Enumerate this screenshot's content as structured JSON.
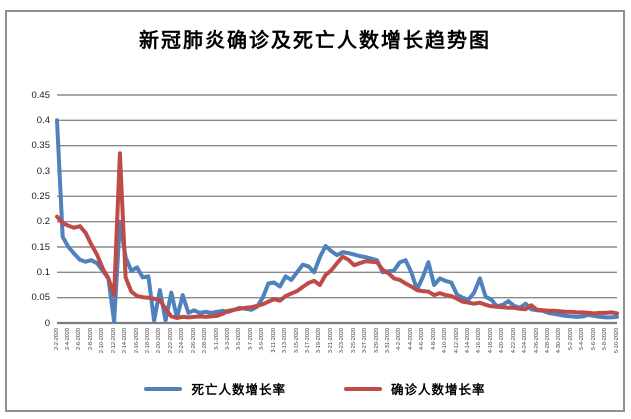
{
  "chart": {
    "title": "新冠肺炎确诊及死亡人数增长趋势图"
  },
  "legend": {
    "items": [
      {
        "label": "死亡人数增长率",
        "color": "#4F81BD"
      },
      {
        "label": "确诊人数增长率",
        "color": "#BE4B48"
      }
    ]
  },
  "colors": {
    "death_series": "#4F81BD",
    "confirmed_series": "#BE4B48",
    "gridline": "#8a8a8a",
    "axis": "#7d7d7d",
    "frame_border": "#8f8f8f"
  },
  "chart_data": {
    "type": "line",
    "title": "新冠肺炎确诊及死亡人数增长趋势图",
    "xlabel": "",
    "ylabel": "",
    "ylim": [
      0,
      0.45
    ],
    "grid": true,
    "legend_position": "bottom",
    "y_tick_labels": [
      "0",
      "0.05",
      "0.1",
      "0.15",
      "0.2",
      "0.25",
      "0.3",
      "0.35",
      "0.4",
      "0.45"
    ],
    "x_tick_labels": [
      "2-2-2020",
      "2-4-2020",
      "2-6-2020",
      "2-8-2020",
      "2-10-2020",
      "2-12-2020",
      "2-14-2020",
      "2-16-2020",
      "2-18-2020",
      "2-20-2020",
      "2-22-2020",
      "2-24-2020",
      "2-26-2020",
      "2-28-2020",
      "3-1-2020",
      "3-3-2020",
      "3-5-2020",
      "3-7-2020",
      "3-9-2020",
      "3-11-2020",
      "3-13-2020",
      "3-15-2020",
      "3-17-2020",
      "3-19-2020",
      "3-21-2020",
      "3-23-2020",
      "3-25-2020",
      "3-27-2020",
      "3-29-2020",
      "3-31-2020",
      "4-2-2020",
      "4-4-2020",
      "4-6-2020",
      "4-8-2020",
      "4-10-2020",
      "4-12-2020",
      "4-14-2020",
      "4-16-2020",
      "4-18-2020",
      "4-20-2020",
      "4-22-2020",
      "4-24-2020",
      "4-26-2020",
      "4-28-2020",
      "4-30-2020",
      "5-2-2020",
      "5-4-2020",
      "5-6-2020",
      "5-8-2020",
      "5-10-2020"
    ],
    "x_tick_interval_days": 2,
    "series": [
      {
        "name": "死亡人数增长率",
        "color": "#4F81BD",
        "values": [
          0.4,
          0.17,
          0.15,
          0.137,
          0.125,
          0.121,
          0.124,
          0.118,
          0.103,
          0.088,
          0.003,
          0.2,
          0.13,
          0.103,
          0.11,
          0.09,
          0.092,
          0.005,
          0.065,
          0.005,
          0.06,
          0.01,
          0.055,
          0.02,
          0.025,
          0.02,
          0.022,
          0.02,
          0.022,
          0.024,
          0.022,
          0.026,
          0.03,
          0.028,
          0.026,
          0.032,
          0.05,
          0.078,
          0.08,
          0.072,
          0.092,
          0.085,
          0.1,
          0.115,
          0.112,
          0.1,
          0.13,
          0.152,
          0.142,
          0.134,
          0.14,
          0.138,
          0.135,
          0.132,
          0.13,
          0.127,
          0.124,
          0.1,
          0.102,
          0.104,
          0.12,
          0.124,
          0.1,
          0.066,
          0.09,
          0.12,
          0.075,
          0.088,
          0.083,
          0.08,
          0.056,
          0.05,
          0.046,
          0.06,
          0.088,
          0.052,
          0.046,
          0.033,
          0.036,
          0.043,
          0.034,
          0.03,
          0.038,
          0.027,
          0.025,
          0.024,
          0.02,
          0.018,
          0.016,
          0.014,
          0.013,
          0.012,
          0.013,
          0.016,
          0.014,
          0.012,
          0.011,
          0.011,
          0.012
        ]
      },
      {
        "name": "确诊人数增长率",
        "color": "#BE4B48",
        "values": [
          0.21,
          0.197,
          0.192,
          0.188,
          0.191,
          0.178,
          0.155,
          0.135,
          0.108,
          0.088,
          0.055,
          0.335,
          0.09,
          0.062,
          0.053,
          0.051,
          0.05,
          0.048,
          0.045,
          0.028,
          0.013,
          0.01,
          0.012,
          0.011,
          0.012,
          0.013,
          0.012,
          0.013,
          0.014,
          0.018,
          0.024,
          0.026,
          0.028,
          0.03,
          0.031,
          0.034,
          0.037,
          0.042,
          0.047,
          0.044,
          0.053,
          0.058,
          0.063,
          0.071,
          0.079,
          0.083,
          0.075,
          0.095,
          0.104,
          0.118,
          0.131,
          0.125,
          0.114,
          0.118,
          0.122,
          0.121,
          0.12,
          0.105,
          0.098,
          0.088,
          0.085,
          0.078,
          0.072,
          0.065,
          0.063,
          0.062,
          0.055,
          0.059,
          0.055,
          0.053,
          0.048,
          0.042,
          0.04,
          0.038,
          0.04,
          0.036,
          0.033,
          0.032,
          0.031,
          0.03,
          0.03,
          0.028,
          0.027,
          0.035,
          0.026,
          0.025,
          0.024,
          0.024,
          0.023,
          0.022,
          0.022,
          0.021,
          0.021,
          0.02,
          0.019,
          0.02,
          0.02,
          0.021,
          0.019
        ]
      }
    ]
  }
}
